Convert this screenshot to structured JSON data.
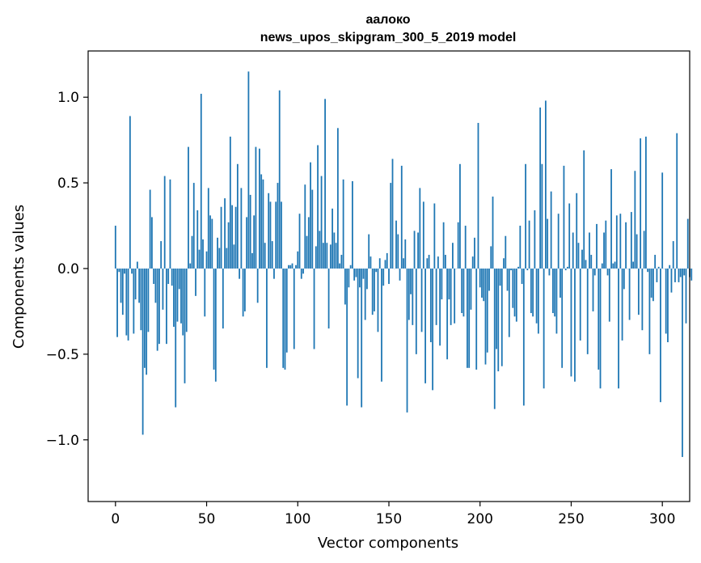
{
  "chart_data": {
    "type": "bar",
    "title": "аалоко",
    "subtitle": "news_upos_skipgram_300_5_2019 model",
    "xlabel": "Vector components",
    "ylabel": "Components values",
    "xlim": [
      -15,
      315
    ],
    "ylim": [
      -1.36,
      1.27
    ],
    "xticks": [
      0,
      50,
      100,
      150,
      200,
      250,
      300
    ],
    "yticks": [
      -1.0,
      -0.5,
      0.0,
      0.5,
      1.0
    ],
    "ytick_labels": [
      "−1.0",
      "−0.5",
      "0.0",
      "0.5",
      "1.0"
    ],
    "bar_width": 0.8,
    "color": "#1f77b4",
    "grid": false,
    "values": [
      0.25,
      -0.4,
      -0.02,
      -0.2,
      -0.27,
      -0.03,
      -0.39,
      -0.42,
      0.89,
      -0.03,
      -0.38,
      -0.18,
      0.04,
      -0.2,
      -0.36,
      -0.97,
      -0.58,
      -0.62,
      -0.37,
      0.46,
      0.3,
      -0.09,
      -0.2,
      -0.48,
      -0.44,
      0.16,
      -0.24,
      0.54,
      -0.44,
      -0.09,
      0.52,
      -0.1,
      -0.34,
      -0.81,
      -0.31,
      -0.12,
      -0.32,
      -0.39,
      -0.67,
      -0.37,
      0.71,
      0.03,
      0.19,
      0.5,
      -0.16,
      0.34,
      0.11,
      1.02,
      0.17,
      -0.28,
      0.1,
      0.47,
      0.31,
      0.29,
      -0.59,
      -0.66,
      0.18,
      0.12,
      0.36,
      -0.35,
      0.41,
      0.12,
      0.27,
      0.77,
      0.37,
      0.14,
      0.36,
      0.61,
      -0.06,
      0.47,
      -0.28,
      -0.25,
      0.3,
      1.15,
      0.43,
      0.09,
      0.31,
      0.71,
      -0.2,
      0.7,
      0.55,
      0.52,
      0.15,
      -0.58,
      0.44,
      0.39,
      0.16,
      -0.06,
      0.39,
      0.5,
      1.04,
      0.39,
      -0.58,
      -0.59,
      -0.49,
      0.02,
      0.02,
      0.03,
      -0.47,
      0.02,
      0.1,
      0.32,
      -0.06,
      -0.03,
      0.49,
      0.19,
      0.3,
      0.62,
      0.46,
      -0.47,
      0.13,
      0.72,
      0.22,
      0.54,
      0.15,
      0.99,
      0.15,
      -0.35,
      0.14,
      0.35,
      0.21,
      0.15,
      0.82,
      0.03,
      0.08,
      0.52,
      -0.21,
      -0.8,
      -0.11,
      0.02,
      0.51,
      -0.07,
      -0.05,
      -0.64,
      -0.11,
      -0.81,
      -0.06,
      -0.3,
      -0.12,
      0.2,
      0.07,
      -0.27,
      -0.25,
      -0.02,
      -0.37,
      0.06,
      -0.66,
      -0.1,
      0.05,
      0.09,
      -0.09,
      0.5,
      0.64,
      0.0,
      0.28,
      0.2,
      -0.07,
      0.6,
      0.06,
      0.17,
      -0.84,
      -0.3,
      -0.15,
      -0.33,
      0.22,
      -0.5,
      0.21,
      0.47,
      -0.37,
      0.39,
      -0.67,
      0.06,
      0.08,
      -0.43,
      -0.71,
      0.38,
      -0.33,
      0.07,
      -0.45,
      -0.18,
      0.27,
      0.08,
      -0.53,
      -0.18,
      -0.33,
      0.15,
      -0.32,
      0.0,
      0.27,
      0.61,
      -0.26,
      -0.28,
      0.25,
      -0.58,
      -0.58,
      -0.24,
      0.07,
      0.18,
      -0.59,
      0.85,
      -0.11,
      -0.17,
      -0.19,
      -0.56,
      -0.49,
      -0.13,
      0.13,
      0.42,
      -0.82,
      -0.47,
      -0.6,
      -0.1,
      -0.57,
      0.06,
      0.19,
      -0.13,
      -0.4,
      -0.01,
      -0.23,
      -0.28,
      -0.31,
      0.01,
      0.25,
      -0.09,
      -0.8,
      0.61,
      -0.01,
      0.28,
      -0.26,
      -0.28,
      0.34,
      -0.32,
      -0.38,
      0.94,
      0.61,
      -0.7,
      0.98,
      0.29,
      -0.04,
      0.45,
      -0.26,
      -0.28,
      -0.38,
      0.32,
      -0.17,
      -0.58,
      0.6,
      -0.01,
      0.01,
      0.38,
      -0.63,
      0.21,
      -0.66,
      0.44,
      0.15,
      -0.42,
      0.11,
      0.69,
      0.05,
      -0.5,
      0.21,
      0.08,
      -0.25,
      -0.04,
      0.26,
      -0.59,
      -0.7,
      0.03,
      0.21,
      0.28,
      -0.04,
      -0.31,
      0.58,
      0.03,
      0.04,
      0.31,
      -0.7,
      0.32,
      -0.42,
      -0.12,
      0.27,
      0.0,
      -0.3,
      0.33,
      0.04,
      0.57,
      0.2,
      -0.27,
      0.76,
      -0.36,
      0.22,
      0.77,
      -0.02,
      -0.5,
      -0.17,
      -0.19,
      0.08,
      -0.08,
      0.01,
      -0.78,
      0.56,
      0.0,
      -0.38,
      -0.43,
      0.02,
      -0.14,
      0.16,
      -0.08,
      0.79,
      -0.08,
      -0.05,
      -1.1,
      -0.04,
      -0.32,
      0.29,
      -0.05,
      -0.07
    ]
  }
}
